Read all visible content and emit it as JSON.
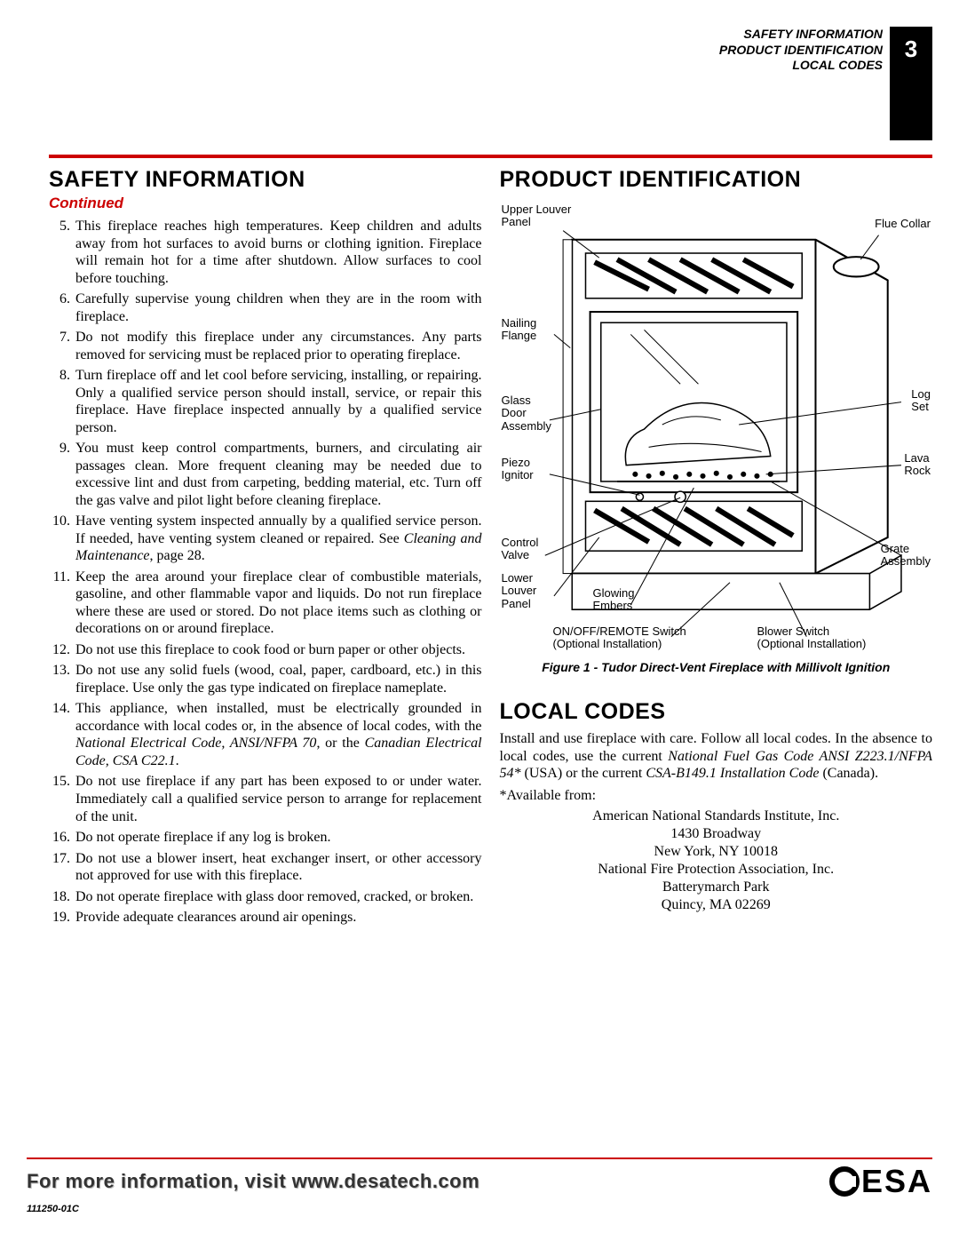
{
  "header": {
    "lines": [
      "SAFETY INFORMATION",
      "PRODUCT IDENTIFICATION",
      "LOCAL CODES"
    ],
    "page_number": "3"
  },
  "colors": {
    "accent": "#cc0000",
    "text": "#000000",
    "bg": "#ffffff"
  },
  "safety": {
    "title": "SAFETY INFORMATION",
    "continued": "Continued",
    "start_number": 5,
    "items": [
      "This fireplace reaches high temperatures. Keep children and adults away from hot surfaces to avoid burns or clothing ignition. Fireplace will remain hot for a time after shutdown. Allow surfaces to cool before touching.",
      "Carefully supervise young children when they are in the room with fireplace.",
      "Do not modify this fireplace under any circumstances. Any parts removed for servicing must be replaced prior to operating fireplace.",
      "Turn fireplace off and let cool before servicing, installing, or repairing. Only a qualified service person should install, service, or repair this fireplace. Have fireplace inspected annually by a qualified service person.",
      "You must keep control compartments, burners, and circulating air passages clean. More frequent cleaning may be needed due to excessive lint and dust from carpeting, bedding material, etc. Turn off the gas valve and pilot light before cleaning fireplace.",
      "Have venting system inspected annually by a qualified service person. If needed, have venting system cleaned or repaired. See <span class=\"italic\">Cleaning and Maintenance</span>, page 28.",
      "Keep the area around your fireplace clear of combustible materials, gasoline, and other flammable vapor and liquids. Do not run fireplace where these are used or stored. Do not place items such as clothing or decorations on or around fireplace.",
      "Do not use this fireplace to cook food or burn paper or other objects.",
      "Do not use any solid fuels (wood, coal, paper, cardboard, etc.) in this fireplace. Use only the gas type indicated on fireplace nameplate.",
      "This appliance, when installed, must be electrically grounded in accordance with local codes or, in the absence of local codes, with the <span class=\"italic\">National Electrical Code, ANSI/NFPA 70</span>, or the <span class=\"italic\">Canadian Electrical Code, CSA C22.1</span>.",
      "Do not use fireplace if any part has been exposed to or under water. Immediately call a qualified service person to arrange for replacement of the unit.",
      "Do not operate fireplace if any log is broken.",
      "Do not use a blower insert, heat exchanger insert, or other accessory not approved for use with this fireplace.",
      "Do not operate fireplace with glass door removed, cracked, or broken.",
      "Provide adequate clearances around air openings."
    ]
  },
  "product_id": {
    "title": "PRODUCT IDENTIFICATION",
    "figure_caption": "Figure 1 - Tudor Direct-Vent Fireplace with Millivolt Ignition",
    "labels": {
      "upper_louver": "Upper Louver\nPanel",
      "flue_collar": "Flue Collar",
      "nailing_flange": "Nailing\nFlange",
      "glass_door": "Glass\nDoor\nAssembly",
      "piezo": "Piezo\nIgnitor",
      "control_valve": "Control\nValve",
      "lower_louver": "Lower\nLouver\nPanel",
      "glowing_embers": "Glowing\nEmbers",
      "onoff": "ON/OFF/REMOTE Switch\n(Optional Installation)",
      "blower": "Blower Switch\n(Optional Installation)",
      "log_set": "Log\nSet",
      "lava_rock": "Lava\nRock",
      "grate": "Grate\nAssembly"
    }
  },
  "local_codes": {
    "title": "LOCAL CODES",
    "body": "Install and use fireplace with care. Follow all local codes. In the absence to local codes, use the current <span class=\"italic\">National Fuel Gas Code ANSI Z223.1/NFPA 54*</span> (USA) or the current <span class=\"italic\">CSA-B149.1 Installation Code</span> (Canada).",
    "available_from": "*Available from:",
    "addresses": [
      "American National Standards Institute, Inc.",
      "1430 Broadway",
      "New York, NY 10018",
      "National Fire Protection Association, Inc.",
      "Batterymarch Park",
      "Quincy, MA 02269"
    ]
  },
  "footer": {
    "text": "For more information, visit www.desatech.com",
    "logo_text": "ESA",
    "docnum": "111250-01C"
  }
}
